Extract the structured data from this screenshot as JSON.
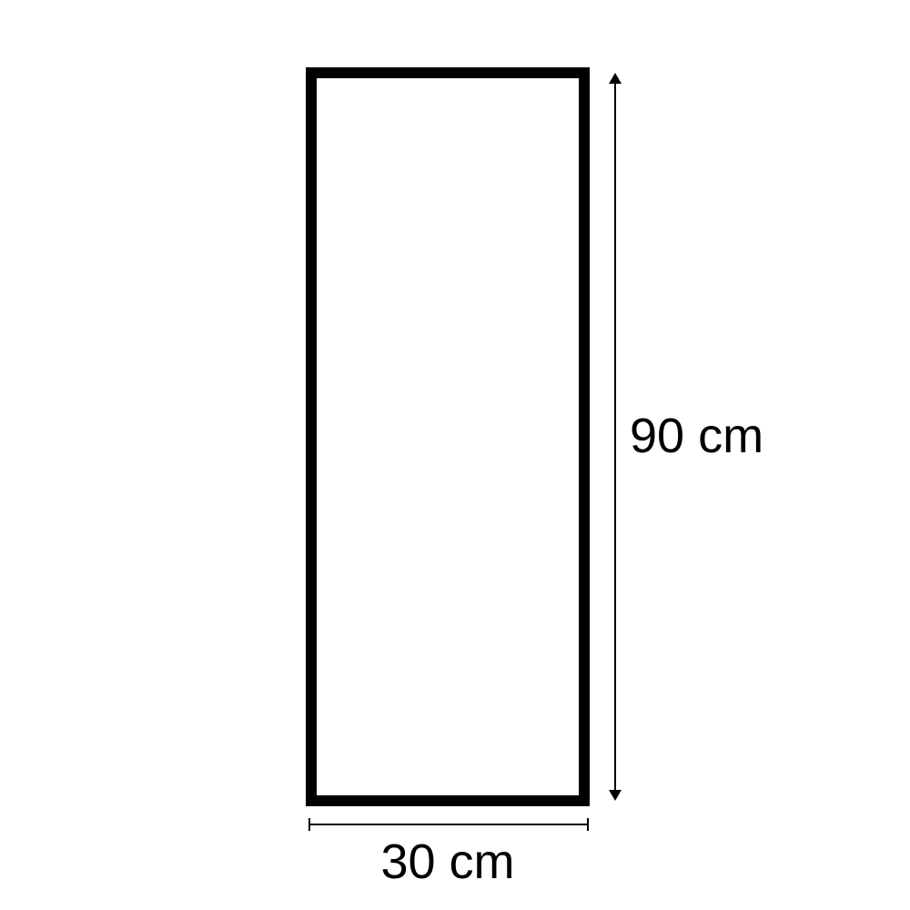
{
  "shape": {
    "type": "rectangle",
    "width_cm": 30,
    "height_cm": 90,
    "stroke_color": "#000000",
    "fill_color": "#ffffff"
  },
  "dimensions": {
    "height_label": "90 cm",
    "width_label": "30 cm"
  }
}
